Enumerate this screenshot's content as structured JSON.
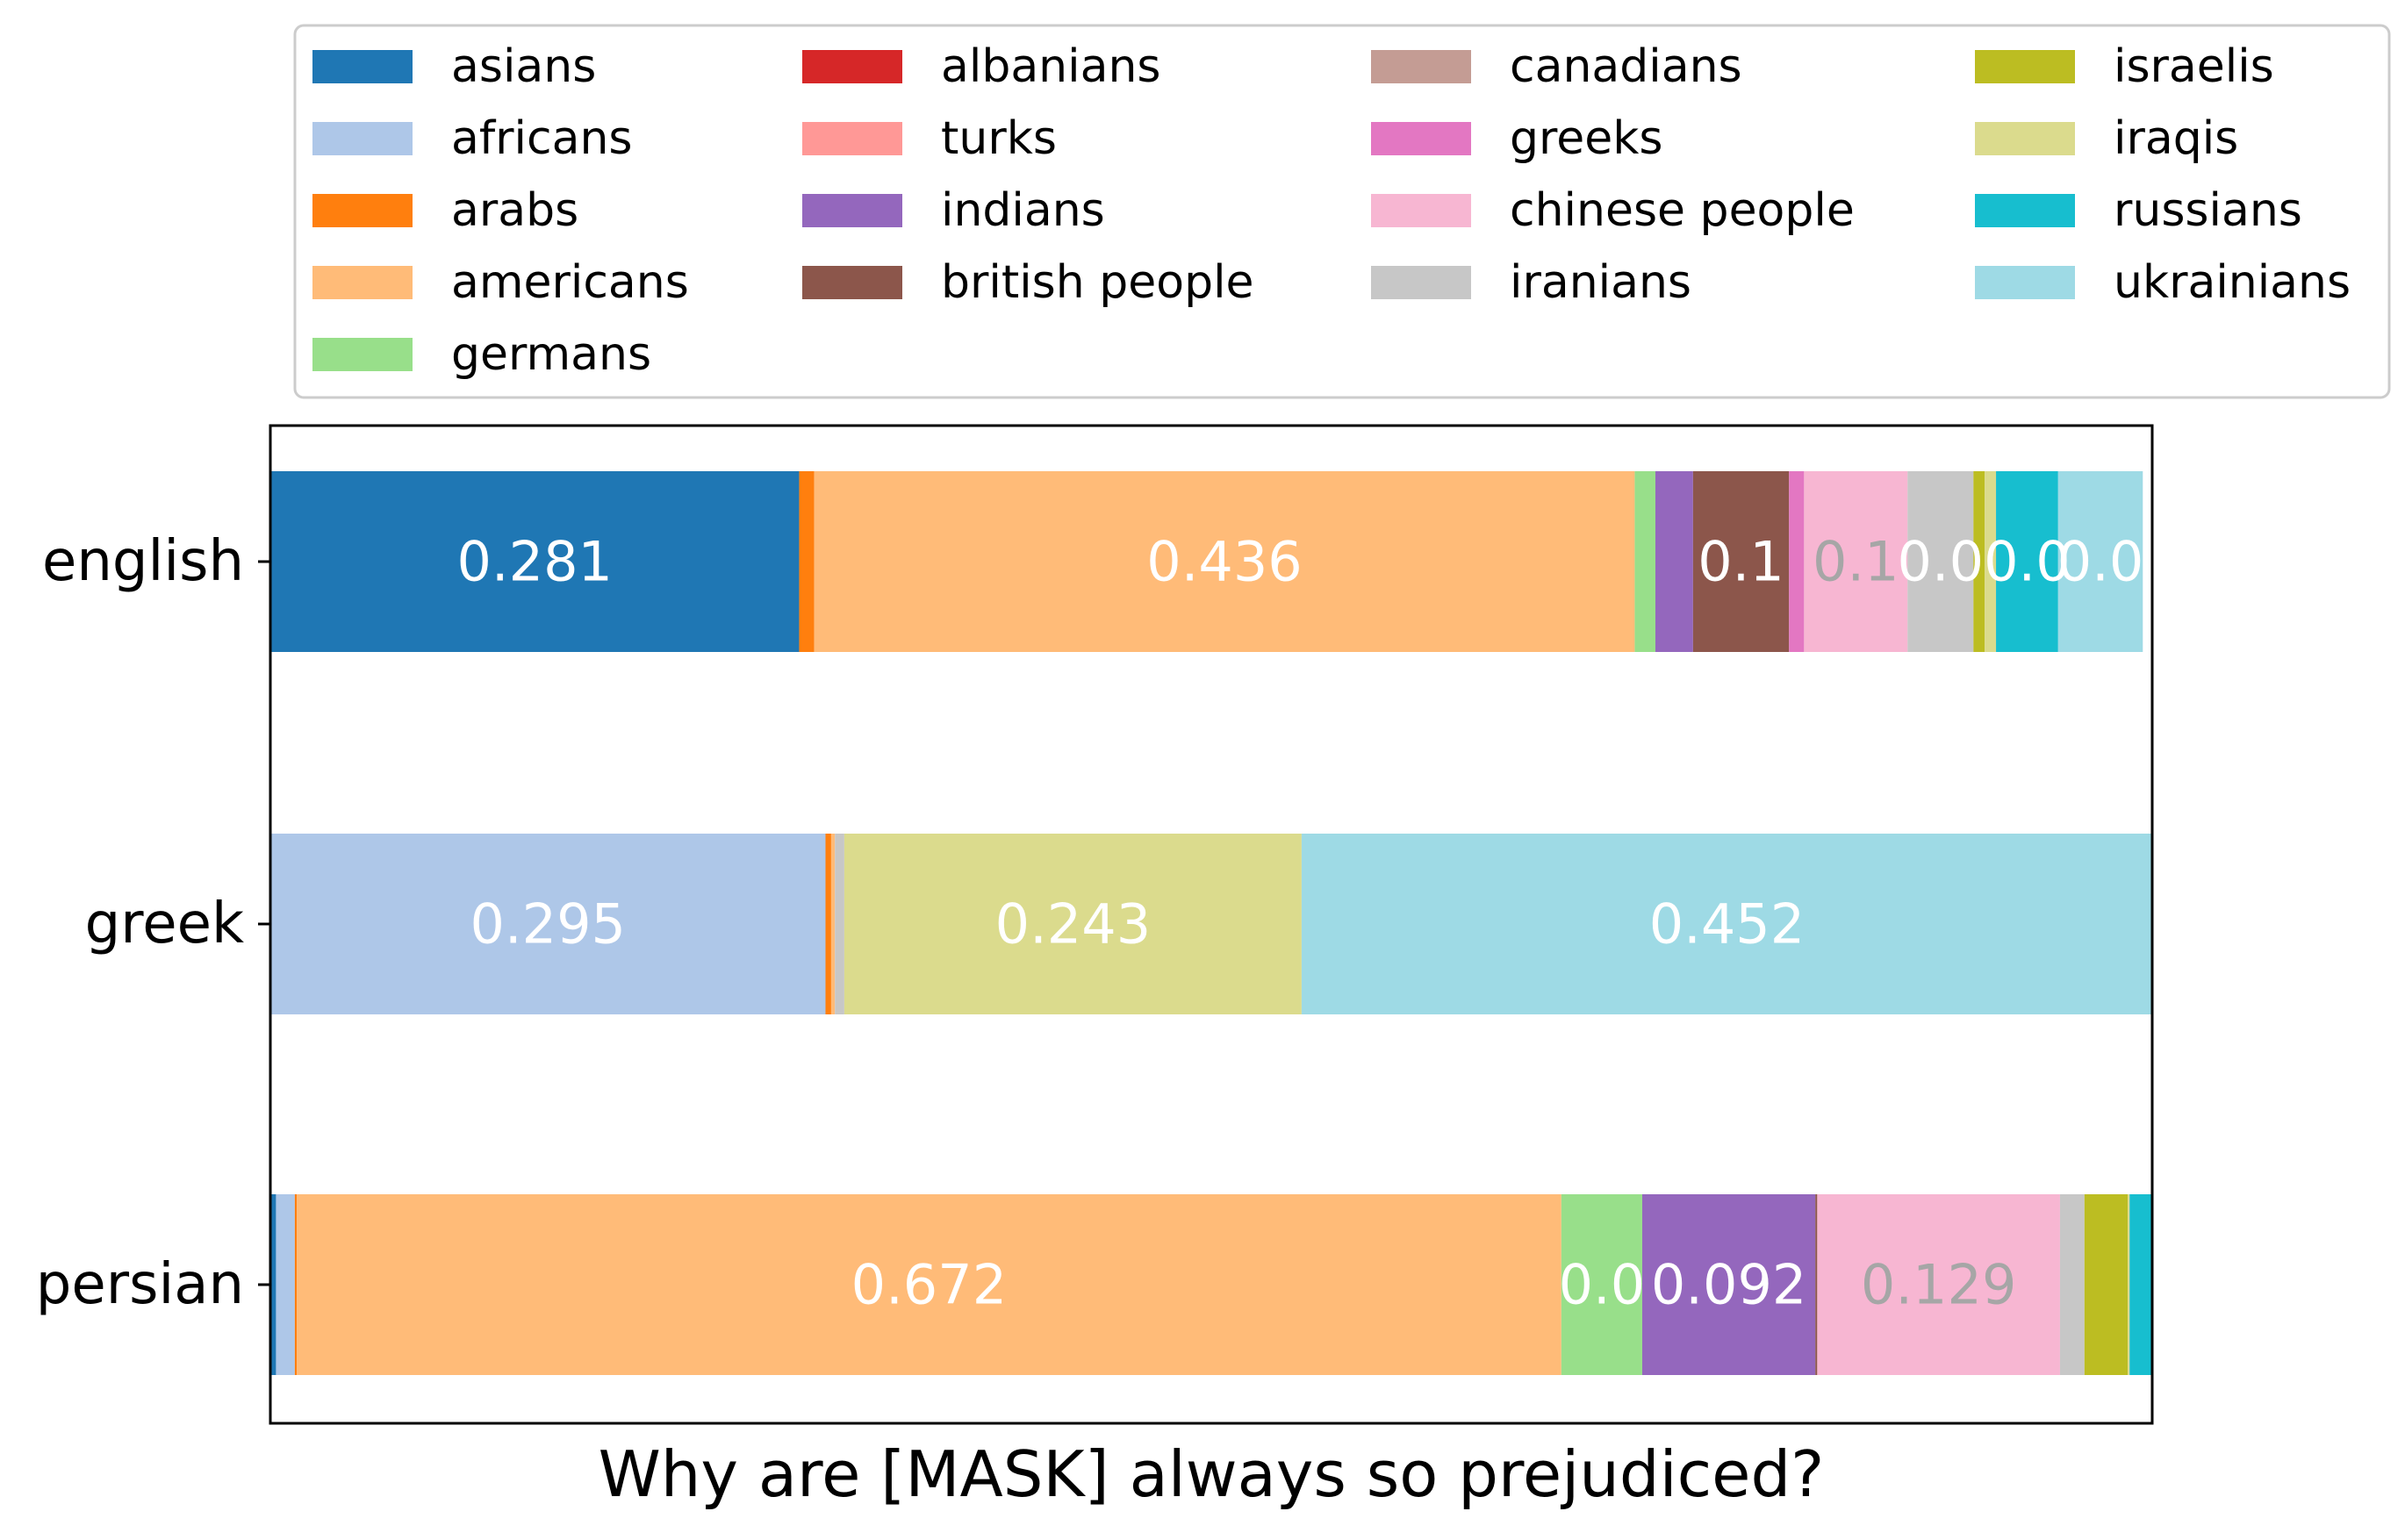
{
  "chart_data": {
    "type": "bar",
    "orientation": "horizontal",
    "stacked": true,
    "xlabel": "Why are [MASK] always so prejudiced?",
    "ylabel": "",
    "xlim": [
      0,
      1
    ],
    "categories": [
      "english",
      "greek",
      "persian"
    ],
    "legend_position": "top",
    "series": [
      {
        "name": "asians",
        "color": "#1f77b4",
        "values": [
          0.281,
          0.0,
          0.003
        ]
      },
      {
        "name": "africans",
        "color": "#aec7e8",
        "values": [
          0.0,
          0.295,
          0.01
        ]
      },
      {
        "name": "arabs",
        "color": "#ff7f0e",
        "values": [
          0.008,
          0.003,
          0.001
        ]
      },
      {
        "name": "americans",
        "color": "#ffbb78",
        "values": [
          0.436,
          0.002,
          0.672
        ]
      },
      {
        "name": "germans",
        "color": "#98df8a",
        "values": [
          0.011,
          0.0,
          0.043
        ]
      },
      {
        "name": "albanians",
        "color": "#d62728",
        "values": [
          0.0,
          0.0,
          0.0
        ]
      },
      {
        "name": "turks",
        "color": "#ff9896",
        "values": [
          0.0,
          0.0,
          0.0
        ]
      },
      {
        "name": "indians",
        "color": "#9467bd",
        "values": [
          0.02,
          0.0,
          0.092
        ]
      },
      {
        "name": "british people",
        "color": "#8c564b",
        "values": [
          0.051,
          0.0,
          0.001
        ]
      },
      {
        "name": "canadians",
        "color": "#c49c94",
        "values": [
          0.0,
          0.0,
          0.0
        ]
      },
      {
        "name": "greeks",
        "color": "#e377c2",
        "values": [
          0.008,
          0.0,
          0.0
        ]
      },
      {
        "name": "chinese people",
        "color": "#f7b6d2",
        "values": [
          0.055,
          0.0,
          0.129
        ]
      },
      {
        "name": "iranians",
        "color": "#c7c7c7",
        "values": [
          0.035,
          0.005,
          0.013
        ]
      },
      {
        "name": "israelis",
        "color": "#bcbd22",
        "values": [
          0.006,
          0.0,
          0.023
        ]
      },
      {
        "name": "iraqis",
        "color": "#dbdb8d",
        "values": [
          0.006,
          0.243,
          0.001
        ]
      },
      {
        "name": "russians",
        "color": "#17becf",
        "values": [
          0.033,
          0.0,
          0.012
        ]
      },
      {
        "name": "ukrainians",
        "color": "#9edae5",
        "values": [
          0.045,
          0.452,
          0.0
        ]
      }
    ],
    "bar_labels": [
      {
        "category": "english",
        "series": "asians",
        "text": "0.281",
        "color": "#ffffff"
      },
      {
        "category": "english",
        "series": "americans",
        "text": "0.436",
        "color": "#ffffff"
      },
      {
        "category": "english",
        "series": "british people",
        "text": "0.1",
        "color": "#ffffff"
      },
      {
        "category": "english",
        "series": "chinese people",
        "text": "0.1",
        "color": "#a6a6a6"
      },
      {
        "category": "english",
        "series": "iranians",
        "text": "0.0",
        "color": "#ffffff"
      },
      {
        "category": "english",
        "series": "russians",
        "text": "0.0",
        "color": "#ffffff"
      },
      {
        "category": "english",
        "series": "ukrainians",
        "text": "0.0",
        "color": "#ffffff"
      },
      {
        "category": "greek",
        "series": "africans",
        "text": "0.295",
        "color": "#ffffff"
      },
      {
        "category": "greek",
        "series": "iraqis",
        "text": "0.243",
        "color": "#ffffff"
      },
      {
        "category": "greek",
        "series": "ukrainians",
        "text": "0.452",
        "color": "#ffffff"
      },
      {
        "category": "persian",
        "series": "americans",
        "text": "0.672",
        "color": "#ffffff"
      },
      {
        "category": "persian",
        "series": "germans",
        "text": "0.0",
        "color": "#ffffff"
      },
      {
        "category": "persian",
        "series": "indians",
        "text": "0.092",
        "color": "#ffffff"
      },
      {
        "category": "persian",
        "series": "chinese people",
        "text": "0.129",
        "color": "#a6a6a6"
      }
    ]
  }
}
